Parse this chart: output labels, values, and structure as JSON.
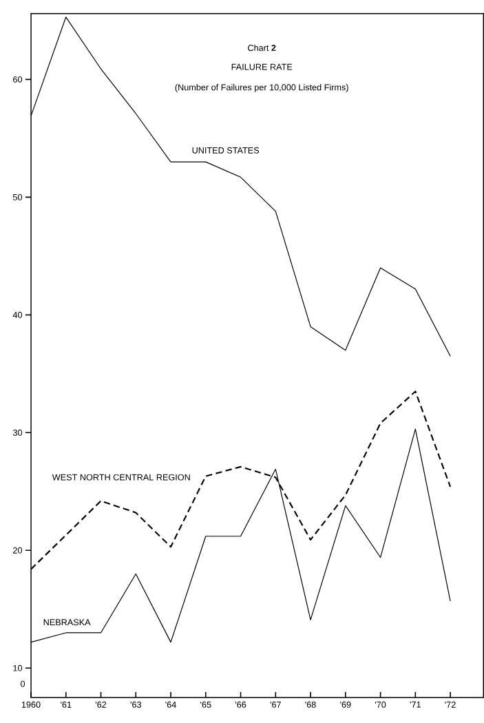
{
  "chart_data": {
    "type": "line",
    "title": "Chart **2**",
    "subtitle": "FAILURE RATE",
    "annotations": [
      "(Number of Failures per 10,000 Listed Firms)",
      "0"
    ],
    "categories": [
      "1960",
      "'61",
      "'62",
      "'63",
      "'64",
      "'65",
      "'66",
      "'67",
      "'68",
      "'69",
      "'70",
      "'71",
      "'72"
    ],
    "ylim": [
      7.5,
      65.6
    ],
    "yticks": [
      10,
      20,
      30,
      40,
      50,
      60
    ],
    "series": [
      {
        "name": "UNITED STATES",
        "color": "#000000",
        "line_style": "solid",
        "values": [
          56.9,
          65.3,
          60.9,
          57.1,
          53.0,
          53.0,
          51.7,
          48.8,
          39.0,
          37.0,
          44.0,
          42.2,
          36.5
        ]
      },
      {
        "name": "WEST NORTH CENTRAL REGION",
        "color": "#000000",
        "line_style": "dashed",
        "values": [
          18.4,
          21.3,
          24.2,
          23.2,
          20.3,
          26.3,
          27.1,
          26.2,
          20.9,
          24.7,
          30.8,
          33.5,
          25.4
        ]
      },
      {
        "name": "NEBRASKA",
        "color": "#000000",
        "line_style": "solid",
        "values": [
          12.2,
          13.0,
          13.0,
          18.0,
          12.2,
          21.2,
          21.2,
          26.9,
          14.1,
          23.8,
          19.4,
          30.3,
          15.7
        ]
      }
    ]
  }
}
